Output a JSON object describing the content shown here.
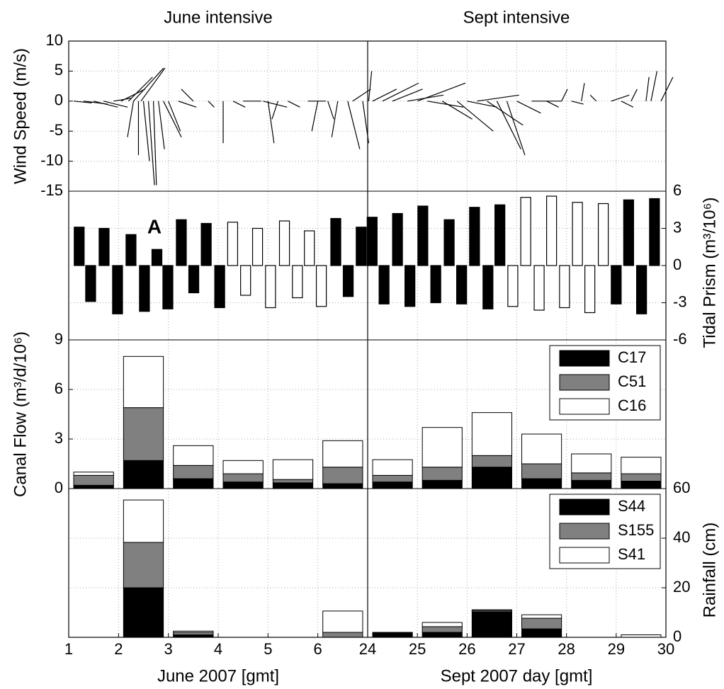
{
  "x_axes": [
    {
      "title": "June intensive",
      "xlabel": "June 2007 [gmt]",
      "xlim": [
        1,
        7
      ],
      "xticks": [
        1,
        2,
        3,
        4,
        5,
        6
      ]
    },
    {
      "title": "Sept intensive",
      "xlabel": "Sept 2007 day [gmt]",
      "xlim": [
        24,
        30
      ],
      "xticks": [
        24,
        25,
        26,
        27,
        28,
        29,
        30
      ]
    }
  ],
  "chart_data": [
    {
      "type": "wind-stick",
      "ylabel": "Wind Speed (m/s)",
      "axis_side": "left",
      "ylim": [
        -15,
        10
      ],
      "yticks": [
        -15,
        -10,
        -5,
        0,
        5,
        10
      ],
      "grid": true,
      "color": "#000000",
      "columns": [
        {
          "x": [
            1.1,
            1.3,
            1.5,
            1.7,
            1.9,
            2.05,
            2.2,
            2.3,
            2.45,
            2.3,
            2.4,
            2.5,
            2.6,
            2.7,
            2.8,
            2.9,
            3.0,
            3.2,
            3.5,
            3.8,
            4.1,
            4.3,
            4.5,
            4.9,
            5.0,
            5.2,
            5.4,
            5.8,
            6.0,
            6.2,
            6.4,
            6.6,
            6.7,
            6.9
          ],
          "u": [
            3,
            4,
            4,
            4,
            3,
            4,
            4,
            5,
            4,
            -1,
            0,
            1,
            1,
            0.5,
            1,
            3,
            2,
            3,
            -2,
            1,
            0,
            2,
            3,
            4,
            1,
            -1,
            2,
            3,
            -1,
            1,
            -1,
            2,
            3,
            1
          ],
          "v": [
            -0.3,
            -0.5,
            -1,
            -1,
            0.5,
            2,
            4,
            5.5,
            5.5,
            -6,
            -9,
            -10,
            -14,
            -14,
            -8,
            -6,
            -5,
            -1,
            2,
            -1,
            -7,
            -1,
            0,
            -1,
            -7,
            -3,
            -1,
            0,
            -5,
            -3,
            -6,
            -8,
            2,
            -7
          ]
        },
        {
          "x": [
            24.02,
            24.1,
            24.3,
            24.5,
            24.8,
            25.0,
            25.2,
            25.5,
            25.8,
            26.0,
            26.2,
            26.4,
            26.6,
            26.8,
            27.0,
            27.3,
            27.6,
            27.9,
            28.1,
            28.3,
            28.6,
            28.9,
            29.1,
            29.3,
            29.6,
            29.7,
            29.9
          ],
          "u": [
            0.5,
            4,
            6,
            5,
            6,
            8,
            6,
            5,
            6,
            5,
            7,
            6,
            4,
            3,
            4,
            5,
            2,
            1,
            2,
            0.5,
            -1,
            3,
            2,
            1,
            0.5,
            1,
            2
          ],
          "v": [
            5,
            2,
            3,
            2,
            1,
            3,
            -1,
            -3,
            -5,
            -1,
            1,
            -4,
            -8,
            -9,
            -2,
            0,
            -1,
            2,
            -0.5,
            3,
            1,
            1,
            -1,
            2,
            4,
            5,
            4
          ]
        }
      ]
    },
    {
      "type": "bar",
      "ylabel": "Tidal Prism (m³/10⁶)",
      "axis_side": "right",
      "ylim": [
        -6,
        6
      ],
      "yticks": [
        -6,
        -3,
        0,
        3,
        6
      ],
      "grid": true,
      "annotation": "A",
      "columns": [
        {
          "series": [
            {
              "color": "#000000",
              "x": [
                1.21,
                1.44,
                1.71,
                1.98,
                2.25,
                2.52,
                2.77,
                2.99,
                3.26,
                3.51,
                3.76,
                4.03,
                6.36,
                6.61,
                6.87
              ],
              "values": [
                3.1,
                -2.9,
                3.0,
                -3.9,
                2.5,
                -3.7,
                1.3,
                -3.5,
                3.7,
                -2.2,
                3.4,
                -3.4,
                3.8,
                -2.5,
                3.1
              ]
            },
            {
              "color": "#ffffff",
              "x": [
                4.29,
                4.55,
                4.79,
                5.05,
                5.33,
                5.59,
                5.83,
                6.07
              ],
              "values": [
                3.5,
                -2.4,
                3.0,
                -3.4,
                3.6,
                -2.6,
                2.8,
                -3.3
              ]
            }
          ]
        },
        {
          "series": [
            {
              "color": "#000000",
              "x": [
                24.09,
                24.33,
                24.6,
                24.85,
                25.11,
                25.37,
                25.64,
                25.89,
                26.15,
                26.42,
                26.66,
                29.0,
                29.25,
                29.51,
                29.77
              ],
              "values": [
                3.9,
                -3.1,
                4.2,
                -3.3,
                4.8,
                -3.0,
                3.7,
                -3.1,
                4.7,
                -3.5,
                4.9,
                -3.1,
                5.3,
                -3.9,
                5.4
              ]
            },
            {
              "color": "#ffffff",
              "x": [
                26.92,
                27.18,
                27.45,
                27.7,
                27.96,
                28.22,
                28.47,
                28.74
              ],
              "values": [
                -3.3,
                5.5,
                -3.6,
                5.6,
                -3.4,
                5.1,
                -3.8,
                5.0
              ]
            }
          ]
        }
      ]
    },
    {
      "type": "stacked-bar",
      "ylabel": "Canal Flow (m³/d/10⁶)",
      "axis_side": "left",
      "ylim": [
        0,
        9
      ],
      "yticks": [
        0,
        3,
        6,
        9
      ],
      "grid": true,
      "legend": "upper right",
      "x": [
        [
          1.5,
          2.5,
          3.5,
          4.5,
          5.5,
          6.5
        ],
        [
          24.5,
          25.5,
          26.5,
          27.5,
          28.5,
          29.5
        ]
      ],
      "series": [
        {
          "name": "C17",
          "color": "#000000",
          "values": [
            [
              0.2,
              1.7,
              0.6,
              0.4,
              0.35,
              0.3
            ],
            [
              0.4,
              0.5,
              1.3,
              0.6,
              0.5,
              0.45
            ]
          ]
        },
        {
          "name": "C51",
          "color": "#808080",
          "values": [
            [
              0.6,
              3.2,
              0.8,
              0.5,
              0.2,
              1.0
            ],
            [
              0.4,
              0.8,
              0.7,
              0.9,
              0.45,
              0.45
            ]
          ]
        },
        {
          "name": "C16",
          "color": "#ffffff",
          "values": [
            [
              0.2,
              3.1,
              1.2,
              0.8,
              1.2,
              1.6
            ],
            [
              0.95,
              2.4,
              2.6,
              1.8,
              1.15,
              1.0
            ]
          ]
        }
      ]
    },
    {
      "type": "stacked-bar",
      "ylabel": "Rainfall (cm)",
      "axis_side": "right",
      "ylim": [
        0,
        60
      ],
      "yticks": [
        0,
        20,
        40,
        60
      ],
      "grid": true,
      "legend": "upper right",
      "x": [
        [
          1.5,
          2.5,
          3.5,
          4.5,
          5.5,
          6.5
        ],
        [
          24.5,
          25.5,
          26.5,
          27.5,
          28.5,
          29.5
        ]
      ],
      "series": [
        {
          "name": "S44",
          "color": "#000000",
          "values": [
            [
              0,
              20,
              1,
              0,
              0,
              0
            ],
            [
              2,
              2,
              10.3,
              3.4,
              0,
              0
            ]
          ]
        },
        {
          "name": "S155",
          "color": "#808080",
          "values": [
            [
              0,
              18.3,
              1,
              0,
              0,
              2
            ],
            [
              0,
              2.3,
              0.6,
              4.3,
              0,
              0
            ]
          ]
        },
        {
          "name": "S41",
          "color": "#ffffff",
          "values": [
            [
              0,
              17.1,
              0.5,
              0,
              0,
              8.6
            ],
            [
              0,
              1.7,
              0.2,
              1.4,
              0,
              1
            ]
          ]
        }
      ]
    }
  ]
}
